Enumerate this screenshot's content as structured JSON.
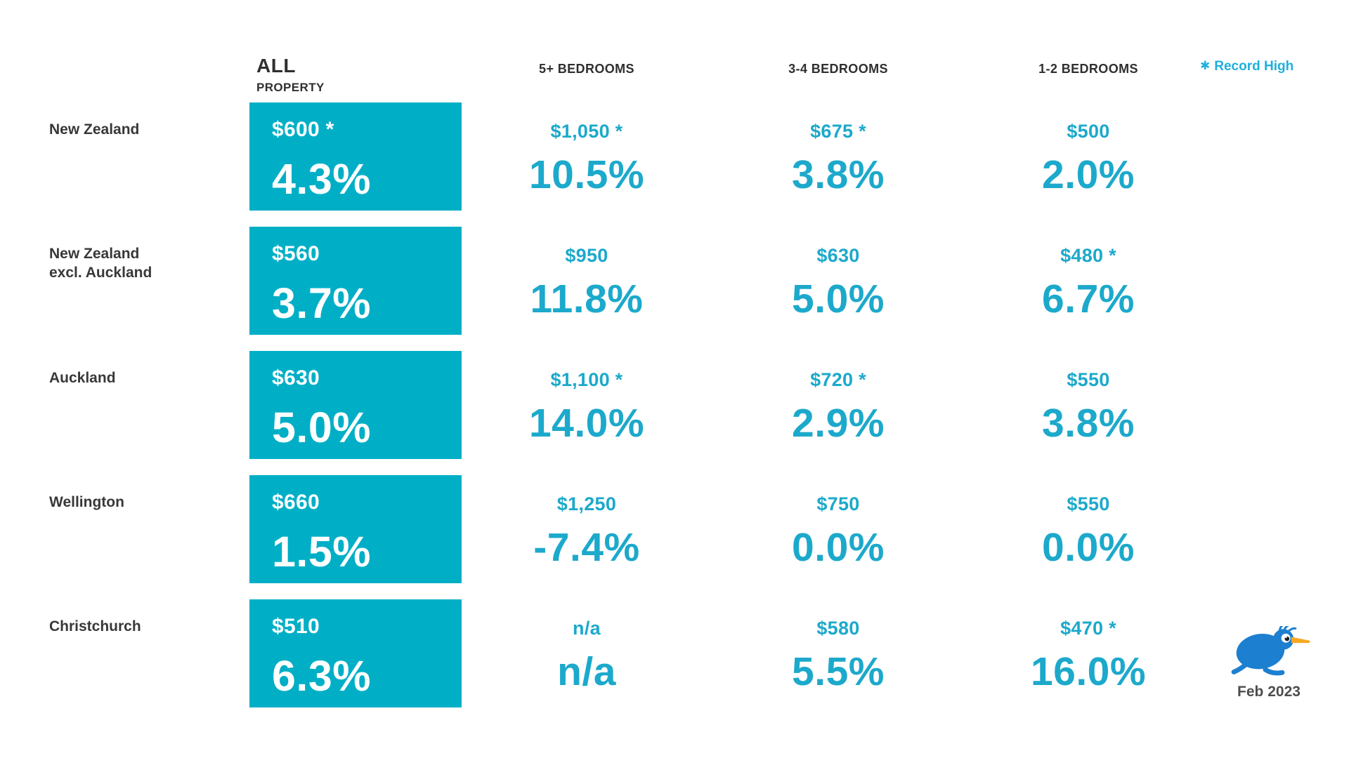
{
  "header": {
    "all_line1": "ALL",
    "all_line2": "PROPERTY",
    "bedrooms_5plus": "5+ BEDROOMS",
    "bedrooms_3_4": "3-4 BEDROOMS",
    "bedrooms_1_2": "1-2 BEDROOMS"
  },
  "legend": {
    "star": "✱",
    "label": "Record High"
  },
  "footer": {
    "date": "Feb 2023",
    "logo": "kiwi-bird-logo"
  },
  "colors": {
    "box_teal": "#00afc6",
    "value_teal": "#1ca9cb",
    "legend_cyan": "#1fb0dc",
    "text_dark": "#383838",
    "kiwi_blue": "#1c7fd0",
    "kiwi_beak_orange": "#f7a823"
  },
  "rows": [
    {
      "region_line1": "New Zealand",
      "region_line2": "",
      "all": {
        "price": "$600 *",
        "pct": "4.3%"
      },
      "b5plus": {
        "price": "$1,050 *",
        "pct": "10.5%"
      },
      "b3_4": {
        "price": "$675 *",
        "pct": "3.8%"
      },
      "b1_2": {
        "price": "$500",
        "pct": "2.0%"
      }
    },
    {
      "region_line1": "New Zealand",
      "region_line2": "excl. Auckland",
      "all": {
        "price": "$560",
        "pct": "3.7%"
      },
      "b5plus": {
        "price": "$950",
        "pct": "11.8%"
      },
      "b3_4": {
        "price": "$630",
        "pct": "5.0%"
      },
      "b1_2": {
        "price": "$480 *",
        "pct": "6.7%"
      }
    },
    {
      "region_line1": "Auckland",
      "region_line2": "",
      "all": {
        "price": "$630",
        "pct": "5.0%"
      },
      "b5plus": {
        "price": "$1,100 *",
        "pct": "14.0%"
      },
      "b3_4": {
        "price": "$720 *",
        "pct": "2.9%"
      },
      "b1_2": {
        "price": "$550",
        "pct": "3.8%"
      }
    },
    {
      "region_line1": "Wellington",
      "region_line2": "",
      "all": {
        "price": "$660",
        "pct": "1.5%"
      },
      "b5plus": {
        "price": "$1,250",
        "pct": "-7.4%"
      },
      "b3_4": {
        "price": "$750",
        "pct": "0.0%"
      },
      "b1_2": {
        "price": "$550",
        "pct": "0.0%"
      }
    },
    {
      "region_line1": "Christchurch",
      "region_line2": "",
      "all": {
        "price": "$510",
        "pct": "6.3%"
      },
      "b5plus": {
        "price": "n/a",
        "pct": "n/a"
      },
      "b3_4": {
        "price": "$580",
        "pct": "5.5%"
      },
      "b1_2": {
        "price": "$470 *",
        "pct": "16.0%"
      }
    }
  ],
  "chart_data": {
    "type": "table",
    "columns": [
      "ALL PROPERTY",
      "5+ BEDROOMS",
      "3-4 BEDROOMS",
      "1-2 BEDROOMS"
    ],
    "row_labels": [
      "New Zealand",
      "New Zealand excl. Auckland",
      "Auckland",
      "Wellington",
      "Christchurch"
    ],
    "cells": [
      [
        {
          "median_rent": 600,
          "record_high": true,
          "annual_change_pct": 4.3
        },
        {
          "median_rent": 1050,
          "record_high": true,
          "annual_change_pct": 10.5
        },
        {
          "median_rent": 675,
          "record_high": true,
          "annual_change_pct": 3.8
        },
        {
          "median_rent": 500,
          "record_high": false,
          "annual_change_pct": 2.0
        }
      ],
      [
        {
          "median_rent": 560,
          "record_high": false,
          "annual_change_pct": 3.7
        },
        {
          "median_rent": 950,
          "record_high": false,
          "annual_change_pct": 11.8
        },
        {
          "median_rent": 630,
          "record_high": false,
          "annual_change_pct": 5.0
        },
        {
          "median_rent": 480,
          "record_high": true,
          "annual_change_pct": 6.7
        }
      ],
      [
        {
          "median_rent": 630,
          "record_high": false,
          "annual_change_pct": 5.0
        },
        {
          "median_rent": 1100,
          "record_high": true,
          "annual_change_pct": 14.0
        },
        {
          "median_rent": 720,
          "record_high": true,
          "annual_change_pct": 2.9
        },
        {
          "median_rent": 550,
          "record_high": false,
          "annual_change_pct": 3.8
        }
      ],
      [
        {
          "median_rent": 660,
          "record_high": false,
          "annual_change_pct": 1.5
        },
        {
          "median_rent": 1250,
          "record_high": false,
          "annual_change_pct": -7.4
        },
        {
          "median_rent": 750,
          "record_high": false,
          "annual_change_pct": 0.0
        },
        {
          "median_rent": 550,
          "record_high": false,
          "annual_change_pct": 0.0
        }
      ],
      [
        {
          "median_rent": 510,
          "record_high": false,
          "annual_change_pct": 6.3
        },
        {
          "median_rent": null,
          "record_high": false,
          "annual_change_pct": null
        },
        {
          "median_rent": 580,
          "record_high": false,
          "annual_change_pct": 5.5
        },
        {
          "median_rent": 470,
          "record_high": true,
          "annual_change_pct": 16.0
        }
      ]
    ],
    "legend": "✱ Record High",
    "date": "Feb 2023"
  }
}
